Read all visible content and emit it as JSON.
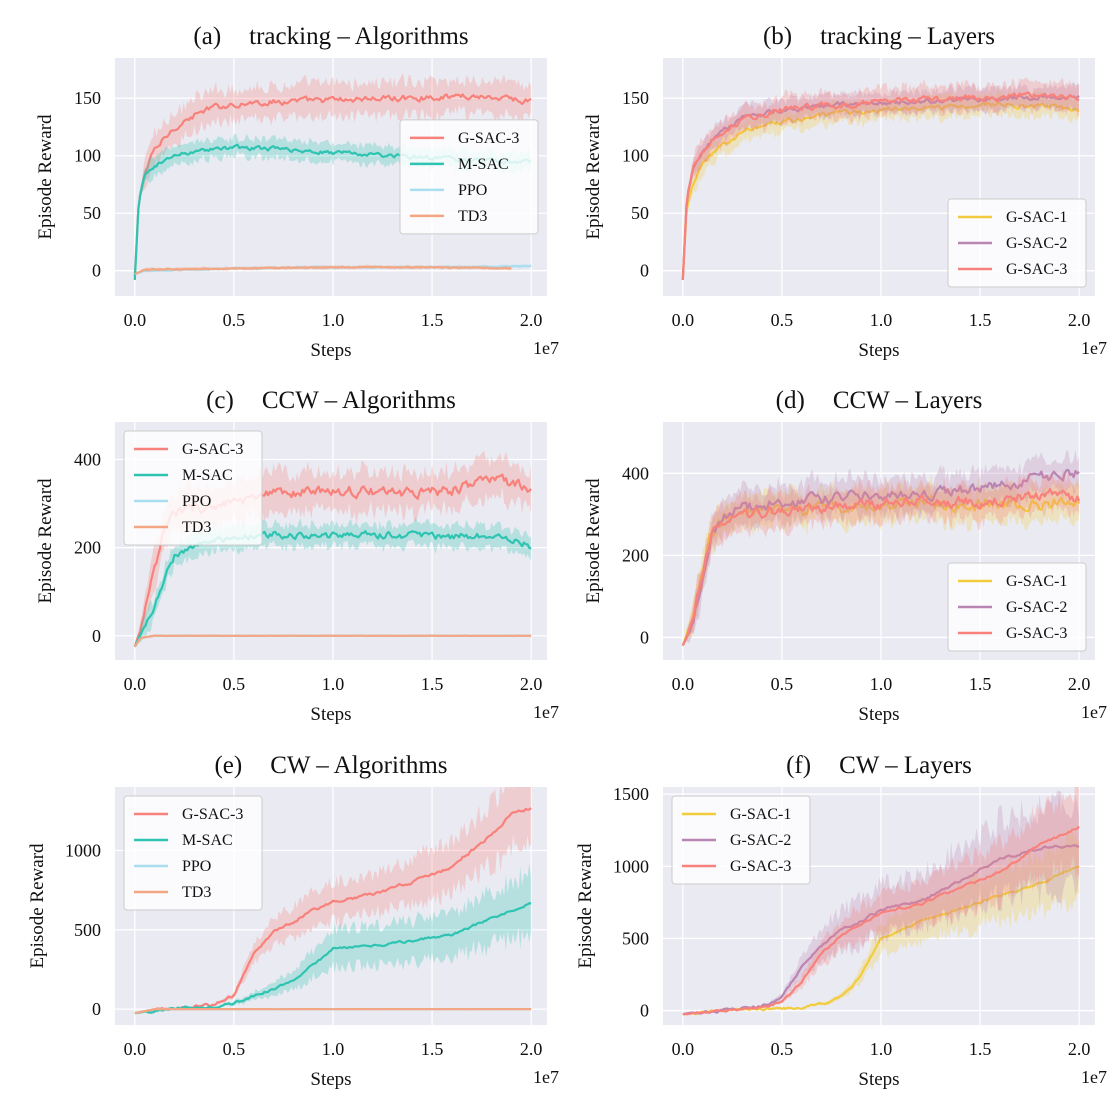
{
  "x_label": "Steps",
  "y_label": "Episode Reward",
  "x_exponent": "1e7",
  "x_ticks": [
    "0.0",
    "0.5",
    "1.0",
    "1.5",
    "2.0"
  ],
  "x_tick_values": [
    0,
    0.5,
    1.0,
    1.5,
    2.0
  ],
  "colors": {
    "G-SAC-3": "#f8817b",
    "M-SAC": "#2fc4b2",
    "PPO": "#a9ddf0",
    "TD3": "#f4a582",
    "G-SAC-1": "#f2cc3d",
    "G-SAC-2": "#b985b3",
    "background": "#eaeaf2",
    "grid": "#ffffff"
  },
  "chart_data": [
    {
      "id": "a",
      "type": "line",
      "letter": "(a)",
      "title": "tracking – Algorithms",
      "xlim": [
        -0.1,
        2.08
      ],
      "ylim": [
        -22,
        185
      ],
      "yticks": [
        0,
        50,
        100,
        150
      ],
      "ytick_labels": [
        "0",
        "50",
        "100",
        "150"
      ],
      "legend_loc": "center-right",
      "series": [
        {
          "name": "G-SAC-3",
          "x": [
            0,
            0.02,
            0.05,
            0.1,
            0.2,
            0.3,
            0.4,
            0.5,
            0.7,
            0.9,
            1.1,
            1.3,
            1.5,
            1.7,
            1.9,
            2.0
          ],
          "mean": [
            -5,
            60,
            85,
            105,
            125,
            135,
            142,
            145,
            147,
            148,
            149,
            150,
            151,
            152,
            150,
            147
          ],
          "band": 14,
          "noise": 5
        },
        {
          "name": "M-SAC",
          "x": [
            0,
            0.02,
            0.05,
            0.1,
            0.2,
            0.3,
            0.4,
            0.5,
            0.7,
            0.9,
            1.1,
            1.3,
            1.5,
            1.7,
            1.9,
            2.0
          ],
          "mean": [
            -8,
            60,
            82,
            92,
            100,
            104,
            106,
            107,
            106,
            104,
            102,
            100,
            98,
            96,
            95,
            95
          ],
          "band": 8,
          "noise": 3.5
        },
        {
          "name": "PPO",
          "x": [
            0,
            0.05,
            0.5,
            1.0,
            1.5,
            2.0
          ],
          "mean": [
            -3,
            0,
            2,
            3,
            3,
            4
          ],
          "band": 1.5,
          "noise": 0.6
        },
        {
          "name": "TD3",
          "x": [
            0,
            0.05,
            0.5,
            1.0,
            1.5,
            1.9
          ],
          "mean": [
            -3,
            1,
            2,
            3,
            3,
            2
          ],
          "band": 1.5,
          "noise": 0.6
        }
      ]
    },
    {
      "id": "b",
      "type": "line",
      "letter": "(b)",
      "title": "tracking – Layers",
      "xlim": [
        -0.1,
        2.08
      ],
      "ylim": [
        -22,
        185
      ],
      "yticks": [
        0,
        50,
        100,
        150
      ],
      "ytick_labels": [
        "0",
        "50",
        "100",
        "150"
      ],
      "legend_loc": "lower-right",
      "series": [
        {
          "name": "G-SAC-1",
          "x": [
            0,
            0.02,
            0.05,
            0.1,
            0.2,
            0.3,
            0.5,
            0.7,
            1.0,
            1.3,
            1.6,
            1.8,
            2.0
          ],
          "mean": [
            -8,
            55,
            75,
            92,
            110,
            120,
            130,
            135,
            140,
            142,
            145,
            143,
            140
          ],
          "band": 9,
          "noise": 4
        },
        {
          "name": "G-SAC-2",
          "x": [
            0,
            0.02,
            0.05,
            0.1,
            0.2,
            0.3,
            0.5,
            0.7,
            1.0,
            1.3,
            1.6,
            1.8,
            2.0
          ],
          "mean": [
            -8,
            62,
            88,
            105,
            122,
            132,
            140,
            143,
            146,
            148,
            150,
            151,
            151
          ],
          "band": 9,
          "noise": 4
        },
        {
          "name": "G-SAC-3",
          "x": [
            0,
            0.02,
            0.05,
            0.1,
            0.2,
            0.3,
            0.5,
            0.7,
            1.0,
            1.3,
            1.6,
            1.8,
            2.0
          ],
          "mean": [
            -8,
            62,
            88,
            105,
            122,
            132,
            140,
            143,
            147,
            149,
            151,
            152,
            150
          ],
          "band": 11,
          "noise": 5
        }
      ]
    },
    {
      "id": "c",
      "type": "line",
      "letter": "(c)",
      "title": "CCW – Algorithms",
      "xlim": [
        -0.1,
        2.08
      ],
      "ylim": [
        -55,
        485
      ],
      "yticks": [
        0,
        200,
        400
      ],
      "ytick_labels": [
        "0",
        "200",
        "400"
      ],
      "legend_loc": "upper-left",
      "series": [
        {
          "name": "G-SAC-3",
          "x": [
            0,
            0.05,
            0.1,
            0.15,
            0.2,
            0.3,
            0.5,
            0.7,
            1.0,
            1.3,
            1.6,
            1.8,
            2.0
          ],
          "mean": [
            -25,
            50,
            150,
            240,
            280,
            290,
            300,
            320,
            330,
            325,
            330,
            360,
            330
          ],
          "band": 45,
          "noise": 22
        },
        {
          "name": "M-SAC",
          "x": [
            0,
            0.05,
            0.1,
            0.15,
            0.2,
            0.3,
            0.5,
            0.7,
            1.0,
            1.3,
            1.6,
            1.8,
            2.0
          ],
          "mean": [
            -25,
            20,
            70,
            130,
            180,
            205,
            220,
            230,
            225,
            230,
            225,
            228,
            205
          ],
          "band": 25,
          "noise": 15
        },
        {
          "name": "PPO",
          "x": [
            0,
            0.03,
            0.1,
            2.0
          ],
          "mean": [
            -25,
            -5,
            0,
            0
          ],
          "band": 2,
          "noise": 0.5
        },
        {
          "name": "TD3",
          "x": [
            0,
            0.03,
            0.1,
            2.0
          ],
          "mean": [
            -25,
            -5,
            0,
            0
          ],
          "band": 2,
          "noise": 0.5
        }
      ]
    },
    {
      "id": "d",
      "type": "line",
      "letter": "(d)",
      "title": "CCW – Layers",
      "xlim": [
        -0.1,
        2.08
      ],
      "ylim": [
        -55,
        525
      ],
      "yticks": [
        0,
        200,
        400
      ],
      "ytick_labels": [
        "0",
        "200",
        "400"
      ],
      "legend_loc": "lower-right",
      "series": [
        {
          "name": "G-SAC-1",
          "x": [
            0,
            0.05,
            0.1,
            0.15,
            0.25,
            0.5,
            0.8,
            1.2,
            1.5,
            1.8,
            2.0
          ],
          "mean": [
            -20,
            40,
            150,
            260,
            300,
            310,
            320,
            330,
            320,
            330,
            330
          ],
          "band": 40,
          "noise": 30
        },
        {
          "name": "G-SAC-2",
          "x": [
            0,
            0.05,
            0.1,
            0.15,
            0.25,
            0.5,
            0.8,
            1.2,
            1.5,
            1.8,
            2.0
          ],
          "mean": [
            -20,
            40,
            150,
            265,
            310,
            330,
            340,
            350,
            360,
            390,
            400
          ],
          "band": 40,
          "noise": 25
        },
        {
          "name": "G-SAC-3",
          "x": [
            0,
            0.05,
            0.1,
            0.15,
            0.25,
            0.5,
            0.8,
            1.2,
            1.5,
            1.8,
            2.0
          ],
          "mean": [
            -20,
            40,
            150,
            260,
            300,
            310,
            320,
            330,
            330,
            350,
            340
          ],
          "band": 40,
          "noise": 25
        }
      ]
    },
    {
      "id": "e",
      "type": "line",
      "letter": "(e)",
      "title": "CW – Algorithms",
      "xlim": [
        -0.1,
        2.08
      ],
      "ylim": [
        -100,
        1400
      ],
      "yticks": [
        0,
        500,
        1000
      ],
      "ytick_labels": [
        "0",
        "500",
        "1000"
      ],
      "legend_loc": "upper-left",
      "series": [
        {
          "name": "G-SAC-3",
          "x": [
            0,
            0.2,
            0.4,
            0.5,
            0.6,
            0.7,
            0.8,
            0.9,
            1.0,
            1.2,
            1.4,
            1.6,
            1.8,
            1.9,
            2.0
          ],
          "mean": [
            -25,
            5,
            30,
            90,
            350,
            480,
            550,
            620,
            680,
            720,
            800,
            900,
            1100,
            1230,
            1270
          ],
          "band_pct": 0.18,
          "noise": 18
        },
        {
          "name": "M-SAC",
          "x": [
            0,
            0.2,
            0.4,
            0.5,
            0.6,
            0.7,
            0.8,
            0.9,
            1.0,
            1.2,
            1.4,
            1.6,
            1.8,
            2.0
          ],
          "mean": [
            -25,
            5,
            15,
            40,
            80,
            130,
            180,
            280,
            380,
            400,
            430,
            470,
            570,
            670
          ],
          "band_pct": 0.3,
          "noise": 14
        },
        {
          "name": "PPO",
          "x": [
            0,
            0.1,
            2.0
          ],
          "mean": [
            -25,
            0,
            0
          ],
          "band": 3,
          "noise": 0.5
        },
        {
          "name": "TD3",
          "x": [
            0,
            0.1,
            2.0
          ],
          "mean": [
            -25,
            0,
            0
          ],
          "band": 3,
          "noise": 0.5
        }
      ]
    },
    {
      "id": "f",
      "type": "line",
      "letter": "(f)",
      "title": "CW – Layers",
      "xlim": [
        -0.1,
        2.08
      ],
      "ylim": [
        -100,
        1550
      ],
      "yticks": [
        0,
        500,
        1000,
        1500
      ],
      "ytick_labels": [
        "0",
        "500",
        "1000",
        "1500"
      ],
      "legend_loc": "upper-left",
      "series": [
        {
          "name": "G-SAC-1",
          "x": [
            0,
            0.2,
            0.4,
            0.6,
            0.75,
            0.85,
            0.9,
            1.0,
            1.2,
            1.4,
            1.6,
            1.8,
            2.0
          ],
          "mean": [
            -25,
            0,
            10,
            20,
            60,
            150,
            250,
            500,
            620,
            700,
            800,
            880,
            1000
          ],
          "band_pct": 0.22,
          "noise": 15
        },
        {
          "name": "G-SAC-2",
          "x": [
            0,
            0.2,
            0.4,
            0.5,
            0.6,
            0.7,
            0.8,
            0.9,
            1.0,
            1.2,
            1.4,
            1.6,
            1.8,
            2.0
          ],
          "mean": [
            -25,
            0,
            30,
            90,
            300,
            450,
            560,
            620,
            700,
            760,
            900,
            1050,
            1130,
            1140
          ],
          "band_pct": 0.25,
          "noise": 18
        },
        {
          "name": "G-SAC-3",
          "x": [
            0,
            0.2,
            0.4,
            0.5,
            0.6,
            0.7,
            0.8,
            0.9,
            1.0,
            1.2,
            1.4,
            1.6,
            1.8,
            2.0
          ],
          "mean": [
            -25,
            0,
            20,
            60,
            200,
            400,
            520,
            600,
            680,
            740,
            850,
            960,
            1150,
            1270
          ],
          "band_pct": 0.2,
          "noise": 15
        }
      ]
    }
  ]
}
